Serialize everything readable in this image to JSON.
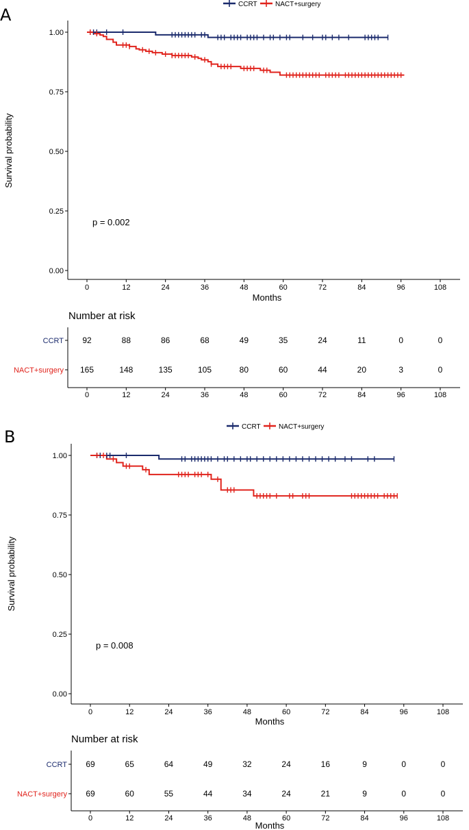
{
  "chart_data": [
    {
      "type": "line",
      "panel_label": "A",
      "chart_kind": "Kaplan-Meier survival curve",
      "legend": [
        {
          "name": "CCRT",
          "color": "#1a2a6c"
        },
        {
          "name": "NACT+surgery",
          "color": "#e0231c"
        }
      ],
      "xlabel": "Months",
      "ylabel": "Survival probability",
      "xlim": [
        -4,
        114
      ],
      "ylim": [
        0,
        1
      ],
      "xticks": [
        "0",
        "12",
        "24",
        "36",
        "48",
        "60",
        "72",
        "84",
        "96",
        "108"
      ],
      "yticks": [
        "0.00",
        "0.25",
        "0.50",
        "0.75",
        "1.00"
      ],
      "annotation": "p = 0.002",
      "series": [
        {
          "name": "CCRT",
          "color": "#1a2a6c",
          "steps": [
            [
              0,
              1.0
            ],
            [
              21,
              0.989
            ],
            [
              37,
              0.978
            ],
            [
              92,
              0.978
            ]
          ],
          "censor_times": [
            1,
            2,
            3,
            6,
            11,
            26,
            27,
            28,
            29,
            30,
            31,
            32,
            33,
            35,
            36,
            40,
            41,
            42,
            44,
            45,
            46,
            47,
            49,
            50,
            51,
            52,
            54,
            56,
            57,
            59,
            61,
            62,
            66,
            69,
            72,
            73,
            75,
            77,
            80,
            85,
            86,
            87,
            88,
            89,
            92
          ]
        },
        {
          "name": "NACT+surgery",
          "color": "#e0231c",
          "steps": [
            [
              0,
              1.0
            ],
            [
              2,
              0.994
            ],
            [
              4,
              0.988
            ],
            [
              5,
              0.982
            ],
            [
              6,
              0.97
            ],
            [
              8,
              0.958
            ],
            [
              9,
              0.946
            ],
            [
              13,
              0.94
            ],
            [
              15,
              0.93
            ],
            [
              16,
              0.926
            ],
            [
              18,
              0.92
            ],
            [
              20,
              0.914
            ],
            [
              23,
              0.908
            ],
            [
              26,
              0.902
            ],
            [
              32,
              0.896
            ],
            [
              34,
              0.89
            ],
            [
              35,
              0.884
            ],
            [
              37,
              0.876
            ],
            [
              38,
              0.866
            ],
            [
              40,
              0.856
            ],
            [
              47,
              0.848
            ],
            [
              53,
              0.84
            ],
            [
              56,
              0.832
            ],
            [
              59,
              0.82
            ],
            [
              97,
              0.82
            ]
          ],
          "censor_times": [
            1,
            3,
            11,
            12,
            13,
            17,
            19,
            21,
            24,
            26,
            27,
            28,
            29,
            30,
            31,
            33,
            36,
            38,
            41,
            42,
            43,
            44,
            48,
            49,
            50,
            51,
            54,
            55,
            61,
            62,
            63,
            64,
            65,
            66,
            67,
            68,
            69,
            70,
            71,
            73,
            74,
            75,
            76,
            77,
            79,
            80,
            81,
            82,
            83,
            84,
            85,
            86,
            87,
            88,
            89,
            90,
            91,
            92,
            93,
            94,
            95,
            96
          ]
        }
      ],
      "risk_table": {
        "title": "Number at risk",
        "time_points": [
          "0",
          "12",
          "24",
          "36",
          "48",
          "60",
          "72",
          "84",
          "96",
          "108"
        ],
        "rows": [
          {
            "group": "CCRT",
            "color": "#1a2a6c",
            "values": [
              "92",
              "88",
              "86",
              "68",
              "49",
              "35",
              "24",
              "11",
              "0",
              "0"
            ]
          },
          {
            "group": "NACT+surgery",
            "color": "#e0231c",
            "values": [
              "165",
              "148",
              "135",
              "105",
              "80",
              "60",
              "44",
              "20",
              "3",
              "0"
            ]
          }
        ]
      }
    },
    {
      "type": "line",
      "panel_label": "B",
      "chart_kind": "Kaplan-Meier survival curve",
      "legend": [
        {
          "name": "CCRT",
          "color": "#1a2a6c"
        },
        {
          "name": "NACT+surgery",
          "color": "#e0231c"
        }
      ],
      "xlabel": "Months",
      "ylabel": "Survival probability",
      "xlim": [
        -4,
        114
      ],
      "ylim": [
        0,
        1
      ],
      "xticks": [
        "0",
        "12",
        "24",
        "36",
        "48",
        "60",
        "72",
        "84",
        "96",
        "108"
      ],
      "yticks": [
        "0.00",
        "0.25",
        "0.50",
        "0.75",
        "1.00"
      ],
      "annotation": "p = 0.008",
      "series": [
        {
          "name": "CCRT",
          "color": "#1a2a6c",
          "steps": [
            [
              0,
              1.0
            ],
            [
              21,
              0.985
            ],
            [
              93,
              0.985
            ]
          ],
          "censor_times": [
            2,
            3,
            5,
            6,
            11,
            28,
            29,
            31,
            32,
            33,
            34,
            35,
            36,
            37,
            39,
            41,
            42,
            44,
            46,
            48,
            49,
            51,
            53,
            55,
            57,
            59,
            61,
            63,
            65,
            67,
            69,
            71,
            73,
            75,
            78,
            80,
            85,
            87,
            93
          ]
        },
        {
          "name": "NACT+surgery",
          "color": "#e0231c",
          "steps": [
            [
              0,
              1.0
            ],
            [
              5,
              0.985
            ],
            [
              8,
              0.97
            ],
            [
              10,
              0.955
            ],
            [
              16,
              0.94
            ],
            [
              18,
              0.92
            ],
            [
              37,
              0.9
            ],
            [
              40,
              0.855
            ],
            [
              50,
              0.83
            ],
            [
              94,
              0.83
            ]
          ],
          "censor_times": [
            2,
            4,
            7,
            11,
            12,
            17,
            27,
            28,
            29,
            30,
            32,
            33,
            34,
            36,
            39,
            42,
            43,
            44,
            51,
            52,
            53,
            54,
            55,
            57,
            61,
            62,
            65,
            66,
            67,
            80,
            81,
            82,
            83,
            84,
            85,
            86,
            87,
            88,
            90,
            91,
            92,
            93,
            94
          ]
        }
      ],
      "risk_table": {
        "title": "Number at risk",
        "time_points": [
          "0",
          "12",
          "24",
          "36",
          "48",
          "60",
          "72",
          "84",
          "96",
          "108"
        ],
        "xlabel": "Months",
        "rows": [
          {
            "group": "CCRT",
            "color": "#1a2a6c",
            "values": [
              "69",
              "65",
              "64",
              "49",
              "32",
              "24",
              "16",
              "9",
              "0",
              "0"
            ]
          },
          {
            "group": "NACT+surgery",
            "color": "#e0231c",
            "values": [
              "69",
              "60",
              "55",
              "44",
              "34",
              "24",
              "21",
              "9",
              "0",
              "0"
            ]
          }
        ]
      }
    }
  ]
}
